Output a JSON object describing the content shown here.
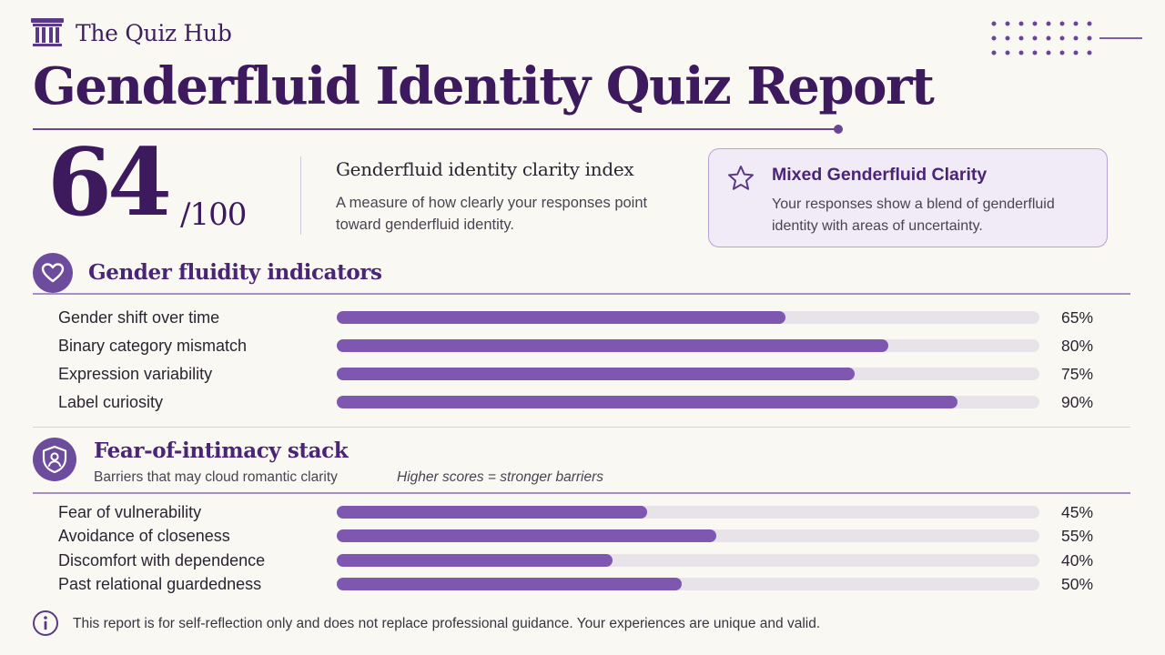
{
  "brand": {
    "name": "The Quiz Hub",
    "icon": "pillar-temple-icon"
  },
  "title": "Genderfluid Identity Quiz Report",
  "score": {
    "value": "64",
    "max": "/100"
  },
  "index": {
    "title": "Genderfluid identity clarity index",
    "description": "A measure of how clearly your responses point toward genderfluid identity."
  },
  "rating": {
    "icon": "star-icon",
    "title": "Mixed Genderfluid Clarity",
    "description": "Your responses show a blend of genderfluid identity with areas of uncertainty."
  },
  "fluidity": {
    "icon": "heart-icon",
    "title": "Gender fluidity indicators",
    "items": [
      {
        "label": "Gender shift over time",
        "percent": 65,
        "display": "65%"
      },
      {
        "label": "Binary category mismatch",
        "percent": 80,
        "display": "80%"
      },
      {
        "label": "Expression variability",
        "percent": 75,
        "display": "75%"
      },
      {
        "label": "Label curiosity",
        "percent": 90,
        "display": "90%"
      }
    ]
  },
  "intimacy": {
    "icon": "shield-person-icon",
    "title": "Fear-of-intimacy stack",
    "subtitle": "Barriers that may cloud romantic clarity",
    "note": "Higher scores = stronger barriers",
    "items": [
      {
        "label": "Fear of vulnerability",
        "percent": 45,
        "display": "45%"
      },
      {
        "label": "Avoidance of closeness",
        "percent": 55,
        "display": "55%"
      },
      {
        "label": "Discomfort with dependence",
        "percent": 40,
        "display": "40%"
      },
      {
        "label": "Past relational guardedness",
        "percent": 50,
        "display": "50%"
      }
    ]
  },
  "footer": {
    "icon": "info-icon",
    "disclaimer": "This report is for self-reflection only and does not replace professional guidance. Your experiences are unique and valid."
  },
  "colors": {
    "accent": "#6e4c9d",
    "bar": "#7e58b0",
    "track": "#e8e3e9",
    "title": "#3d1a5e",
    "background": "#faf8f3"
  }
}
